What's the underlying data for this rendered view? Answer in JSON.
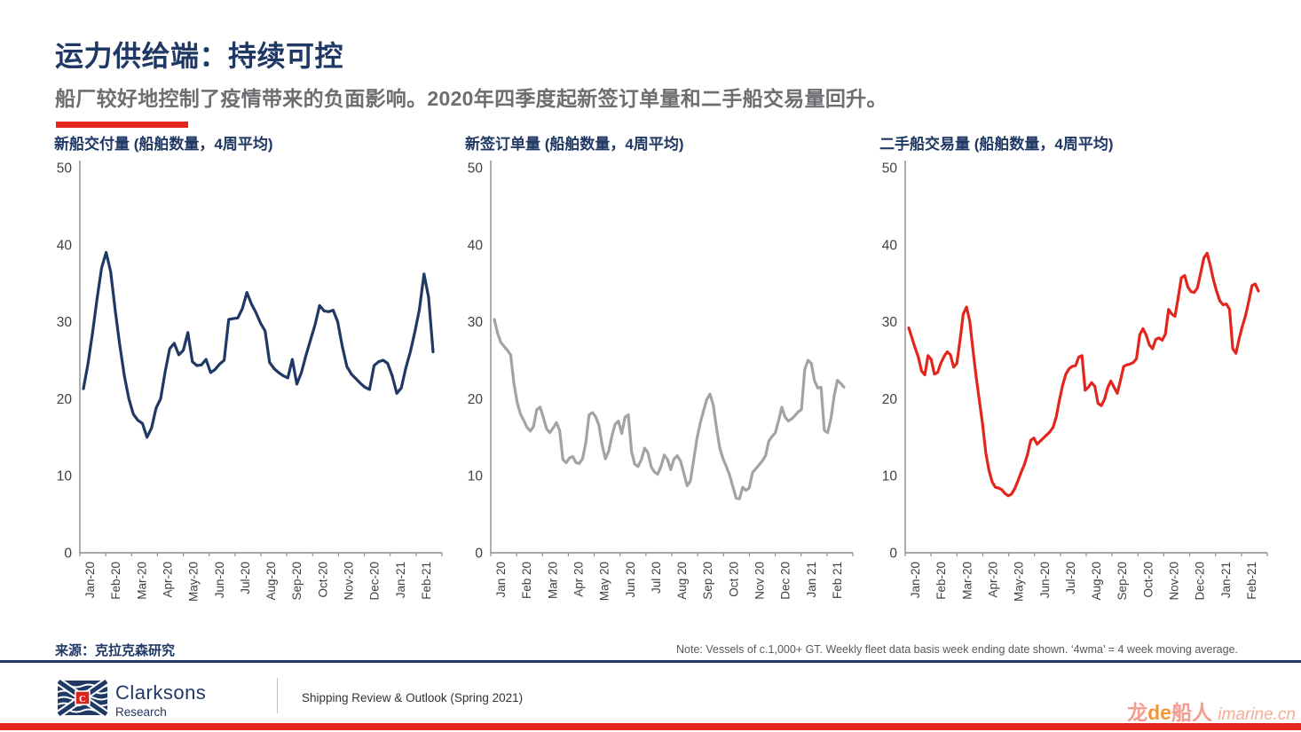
{
  "header": {
    "title": "运力供给端：持续可控",
    "subtitle": "船厂较好地控制了疫情带来的负面影响。2020年四季度起新签订单量和二手船交易量回升。"
  },
  "source": {
    "label": "来源：克拉克森研究"
  },
  "note": {
    "text": "Note: Vessels of c.1,000+ GT. Weekly fleet data basis week ending date shown. ‘4wma’ = 4 week moving average."
  },
  "footer": {
    "logo_name": "Clarksons",
    "logo_sub": "Research",
    "logo_monogram": "C",
    "doc_title": "Shipping Review & Outlook (Spring 2021)"
  },
  "watermark": {
    "cn_left": "龙",
    "de": "de",
    "cn_right": "船人",
    "site": "imarine.cn"
  },
  "colors": {
    "navy": "#1F3864",
    "red": "#E3261D",
    "gray_line": "#A3A3A3",
    "axis": "#8C8C8C",
    "tick_text": "#404040"
  },
  "chart_data": [
    {
      "type": "line",
      "title": "新船交付量 (船舶数量，4周平均)",
      "series": [
        {
          "name": "新船交付量 4wma",
          "color": "#1F3864",
          "values": [
            21.3,
            24.5,
            28.5,
            33,
            37,
            39,
            36.5,
            31.5,
            27,
            23,
            20,
            18,
            17.2,
            16.8,
            15,
            16.2,
            18.8,
            20,
            23.5,
            26.5,
            27.2,
            25.7,
            26.3,
            28.6,
            24.8,
            24.3,
            24.4,
            25.1,
            23.4,
            23.8,
            24.5,
            25,
            30.3,
            30.4,
            30.5,
            31.7,
            33.8,
            32.3,
            31.2,
            29.8,
            28.8,
            24.7,
            23.9,
            23.4,
            23,
            22.7,
            25.1,
            21.9,
            23.4,
            25.6,
            27.6,
            29.6,
            32.1,
            31.4,
            31.3,
            31.5,
            30,
            26.8,
            24.2,
            23.2,
            22.6,
            22,
            21.5,
            21.2,
            24.3,
            24.8,
            25,
            24.6,
            23,
            20.7,
            21.4,
            24,
            26.1,
            28.7,
            31.6,
            36.2,
            33.2,
            26.1
          ]
        }
      ],
      "x_labels": [
        "Jan-20",
        "Feb-20",
        "Mar-20",
        "Apr-20",
        "May-20",
        "Jun-20",
        "Jul-20",
        "Aug-20",
        "Sep-20",
        "Oct-20",
        "Nov-20",
        "Dec-20",
        "Jan-21",
        "Feb-21"
      ],
      "ylim": [
        0,
        50
      ],
      "yticks": [
        0,
        10,
        20,
        30,
        40,
        50
      ],
      "grid": false,
      "legend": "none"
    },
    {
      "type": "line",
      "title": "新签订单量 (船舶数量，4周平均)",
      "series": [
        {
          "name": "新签订单量 4wma",
          "color": "#A3A3A3",
          "values": [
            30.3,
            28.5,
            27.3,
            26.8,
            26.3,
            25.7,
            22,
            19.5,
            18,
            17.2,
            16.3,
            15.8,
            16.4,
            18.6,
            18.9,
            17.6,
            16.1,
            15.6,
            16.2,
            16.9,
            15.9,
            12.1,
            11.7,
            12.3,
            12.5,
            11.7,
            11.6,
            12.2,
            14.3,
            17.9,
            18.2,
            17.7,
            16.6,
            14,
            12.2,
            13.2,
            15.2,
            16.7,
            17.1,
            15.5,
            17.6,
            17.9,
            13.1,
            11.5,
            11.2,
            12.1,
            13.6,
            13,
            11.2,
            10.5,
            10.2,
            11.2,
            12.7,
            12.1,
            10.8,
            12.2,
            12.6,
            11.9,
            10.3,
            8.7,
            9.3,
            12,
            14.8,
            16.8,
            18.4,
            19.9,
            20.6,
            19.2,
            16.2,
            13.6,
            12.2,
            11.2,
            10.1,
            8.6,
            7.1,
            7,
            8.5,
            8.1,
            8.4,
            10.4,
            10.9,
            11.4,
            11.9,
            12.6,
            14.5,
            15.1,
            15.6,
            17.2,
            18.9,
            17.6,
            17.1,
            17.4,
            17.8,
            18.3,
            18.6,
            23.8,
            25,
            24.6,
            22.3,
            21.4,
            21.5,
            15.9,
            15.6,
            17.4,
            20.4,
            22.4,
            22,
            21.5
          ]
        }
      ],
      "x_labels": [
        "Jan 20",
        "Feb 20",
        "Mar 20",
        "Apr 20",
        "May 20",
        "Jun 20",
        "Jul 20",
        "Aug 20",
        "Sep 20",
        "Oct 20",
        "Nov 20",
        "Dec 20",
        "Jan 21",
        "Feb 21"
      ],
      "ylim": [
        0,
        50
      ],
      "yticks": [
        0,
        10,
        20,
        30,
        40,
        50
      ],
      "grid": false,
      "legend": "none"
    },
    {
      "type": "line",
      "title": "二手船交易量 (船舶数量，4周平均)",
      "series": [
        {
          "name": "二手船交易量 4wma",
          "color": "#E3261D",
          "values": [
            29.2,
            27.9,
            26.6,
            25.4,
            23.6,
            23.1,
            25.6,
            25.1,
            23.2,
            23.4,
            24.6,
            25.5,
            26.1,
            25.7,
            24.1,
            24.6,
            27.6,
            31,
            31.9,
            30.1,
            26.4,
            22.9,
            19.8,
            16.8,
            13,
            10.7,
            9.2,
            8.5,
            8.4,
            8.2,
            7.7,
            7.4,
            7.6,
            8.3,
            9.3,
            10.4,
            11.4,
            12.7,
            14.6,
            14.9,
            14.1,
            14.5,
            14.9,
            15.3,
            15.7,
            16.3,
            17.7,
            19.9,
            21.8,
            23.2,
            23.9,
            24.2,
            24.3,
            25.4,
            25.6,
            21.1,
            21.5,
            22.1,
            21.6,
            19.4,
            19.1,
            19.9,
            21.4,
            22.3,
            21.5,
            20.7,
            22.4,
            24.2,
            24.4,
            24.5,
            24.7,
            25.2,
            28.3,
            29.1,
            28.3,
            27,
            26.5,
            27.7,
            27.9,
            27.6,
            28.4,
            31.6,
            31,
            30.7,
            33.1,
            35.7,
            36,
            34.5,
            33.9,
            33.8,
            34.4,
            36.3,
            38.3,
            38.9,
            37.3,
            35.4,
            33.9,
            32.7,
            32.2,
            32.3,
            31.6,
            26.5,
            25.9,
            27.8,
            29.4,
            30.8,
            32.7,
            34.7,
            34.9,
            34
          ]
        }
      ],
      "x_labels": [
        "Jan-20",
        "Feb-20",
        "Mar-20",
        "Apr-20",
        "May-20",
        "Jun-20",
        "Jul-20",
        "Aug-20",
        "Sep-20",
        "Oct-20",
        "Nov-20",
        "Dec-20",
        "Jan-21",
        "Feb-21"
      ],
      "ylim": [
        0,
        50
      ],
      "yticks": [
        0,
        10,
        20,
        30,
        40,
        50
      ],
      "grid": false,
      "legend": "none"
    }
  ]
}
